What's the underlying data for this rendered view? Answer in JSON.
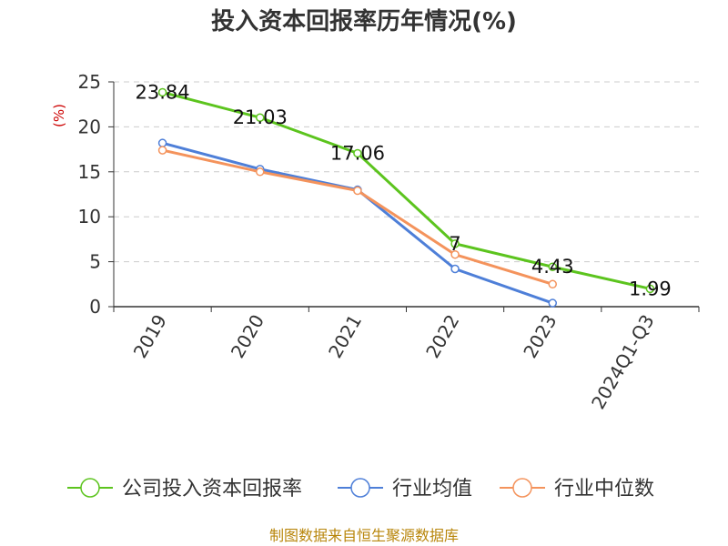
{
  "chart_data": {
    "type": "line",
    "title": "投入资本回报率历年情况(%)",
    "ylabel": "(%)",
    "ylim": [
      0,
      25
    ],
    "yticks": [
      0,
      5,
      10,
      15,
      20,
      25
    ],
    "grid": "horizontal-dashed",
    "legend_position": "bottom",
    "categories": [
      "2019",
      "2020",
      "2021",
      "2022",
      "2023",
      "2024Q1-Q3"
    ],
    "series": [
      {
        "name": "公司投入资本回报率",
        "color": "#5cc41e",
        "show_labels": true,
        "values": [
          23.84,
          21.03,
          17.06,
          7,
          4.43,
          1.99
        ],
        "labels": [
          "23.84",
          "21.03",
          "17.06",
          "7",
          "4.43",
          "1.99"
        ]
      },
      {
        "name": "行业均值",
        "color": "#4e7fd8",
        "show_labels": false,
        "values": [
          18.2,
          15.3,
          13.0,
          4.2,
          0.4,
          null
        ]
      },
      {
        "name": "行业中位数",
        "color": "#f4935c",
        "show_labels": false,
        "values": [
          17.4,
          15.0,
          12.9,
          5.8,
          2.5,
          null
        ]
      }
    ]
  },
  "footer": {
    "source": "制图数据来自恒生聚源数据库"
  }
}
